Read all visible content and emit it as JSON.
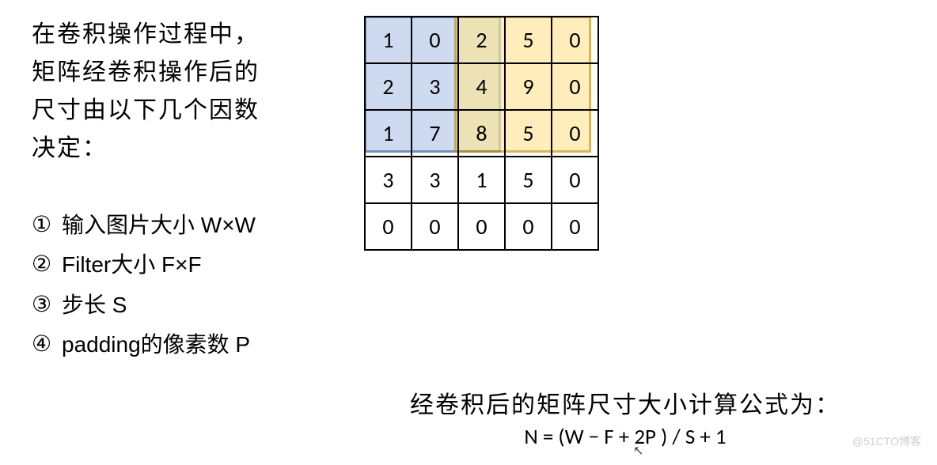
{
  "intro_lines": [
    "在卷积操作过程中，",
    "矩阵经卷积操作后的",
    "尺寸由以下几个因数",
    "决定："
  ],
  "list_items": [
    {
      "marker": "①",
      "text": "输入图片大小 W×W"
    },
    {
      "marker": "②",
      "text": "Filter大小 F×F"
    },
    {
      "marker": "③",
      "text": "步长 S"
    },
    {
      "marker": "④",
      "text": "padding的像素数 P"
    }
  ],
  "grid": {
    "rows": 5,
    "cols": 5,
    "cells": [
      [
        "1",
        "0",
        "2",
        "5",
        "0"
      ],
      [
        "2",
        "3",
        "4",
        "9",
        "0"
      ],
      [
        "1",
        "7",
        "8",
        "5",
        "0"
      ],
      [
        "3",
        "3",
        "1",
        "5",
        "0"
      ],
      [
        "0",
        "0",
        "0",
        "0",
        "0"
      ]
    ],
    "cell_size": 55,
    "border_color": "#000000",
    "default_bg": "#ffffff",
    "text_color": "#000000",
    "font_size": 28,
    "overlays": [
      {
        "r0": 0,
        "c0": 0,
        "r1": 2,
        "c1": 2,
        "fill": "#b4c7e7",
        "fill_opacity": 0.65,
        "stroke": "#2f5597",
        "stroke_width": 3
      },
      {
        "r0": 0,
        "c0": 2,
        "r1": 2,
        "c1": 4,
        "fill": "#ffe699",
        "fill_opacity": 0.65,
        "stroke": "#bf9000",
        "stroke_width": 3
      }
    ]
  },
  "formula_title": "经卷积后的矩阵尺寸大小计算公式为：",
  "formula_body": "N = (W − F + 2P ) / S + 1",
  "watermark": "@51CTO博客"
}
